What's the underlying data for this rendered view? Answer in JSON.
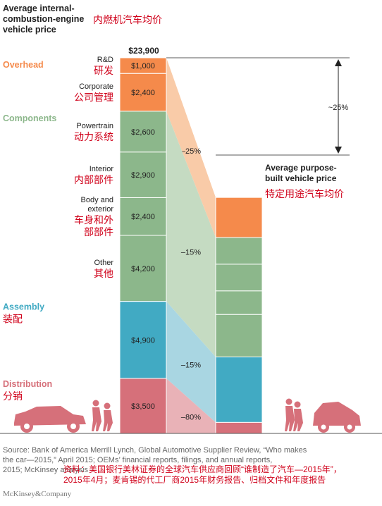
{
  "chart_data": {
    "type": "waterfall",
    "title_en": "Average internal-combustion-engine vehicle price",
    "title_zh": "内燃机汽车均价",
    "total_label": "$23,900",
    "total": 23900,
    "ice_components": [
      {
        "group": "overhead",
        "en": "R&D",
        "zh": "研发",
        "value": 1000,
        "label": "$1,000"
      },
      {
        "group": "overhead",
        "en": "Corporate",
        "zh": "公司管理",
        "value": 2400,
        "label": "$2,400"
      },
      {
        "group": "components",
        "en": "Powertrain",
        "zh": "动力系统",
        "value": 2600,
        "label": "$2,600"
      },
      {
        "group": "components",
        "en": "Interior",
        "zh": "内部部件",
        "value": 2900,
        "label": "$2,900"
      },
      {
        "group": "components",
        "en": "Body and exterior",
        "zh": "车身和外部部件",
        "value": 2400,
        "label": "$2,400"
      },
      {
        "group": "components",
        "en": "Other",
        "zh": "其他",
        "value": 4200,
        "label": "$4,200"
      },
      {
        "group": "assembly",
        "en": "",
        "zh": "",
        "value": 4900,
        "label": "$4,900"
      },
      {
        "group": "distribution",
        "en": "",
        "zh": "",
        "value": 3500,
        "label": "$3,500"
      }
    ],
    "groups": [
      {
        "key": "overhead",
        "en": "Overhead",
        "zh": "",
        "color": "#f58a4b",
        "reduction": "–25%",
        "light": "#f9cba8"
      },
      {
        "key": "components",
        "en": "Components",
        "zh": "",
        "color": "#8cb78b",
        "reduction": "–15%",
        "light": "#c5dbc2"
      },
      {
        "key": "assembly",
        "en": "Assembly",
        "zh": "装配",
        "color": "#41aac3",
        "reduction": "–15%",
        "light": "#a9d6e2"
      },
      {
        "key": "distribution",
        "en": "Distribution",
        "zh": "分销",
        "color": "#d6707a",
        "reduction": "–80%",
        "light": "#e9b2b7"
      }
    ],
    "purpose_built_components": [
      {
        "group": "overhead",
        "value": 2550
      },
      {
        "group": "components",
        "value": 1700
      },
      {
        "group": "components",
        "value": 1700
      },
      {
        "group": "components",
        "value": 1500
      },
      {
        "group": "components",
        "value": 2700
      },
      {
        "group": "assembly",
        "value": 4165
      },
      {
        "group": "distribution",
        "value": 700
      }
    ],
    "purpose_built_title_en": "Average purpose-built vehicle price",
    "purpose_built_title_zh": "特定用途汽车均价",
    "overall_reduction": "~25%"
  },
  "source": {
    "en": "Source: Bank of America Merrill Lynch, Global Automotive Supplier Review, “Who makes the car—2015,” April 2015; OEMs’ financial reports, filings, and annual reports, 2015; McKinsey analysis",
    "zh": "资料：美国银行美林证券的全球汽车供应商回顾“谁制造了汽车—2015年”，2015年4月；麦肯锡的代工厂商2015年财务报告、归档文件和年度报告"
  },
  "brand": "McKinsey&Company",
  "colors": {
    "axis": "#222222",
    "red_text": "#d0021b",
    "muted": "#666666"
  }
}
